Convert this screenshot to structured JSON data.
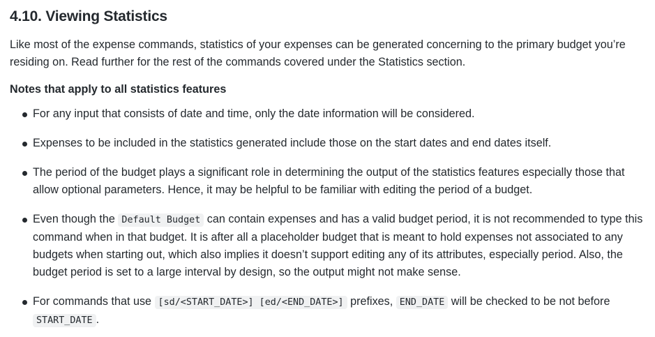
{
  "section": {
    "title": "4.10. Viewing Statistics",
    "intro": "Like most of the expense commands, statistics of your expenses can be generated concerning to the primary budget you’re residing on. Read further for the rest of the commands covered under the Statistics section.",
    "notes_heading": "Notes that apply to all statistics features",
    "notes": [
      {
        "text": "For any input that consists of date and time, only the date information will be considered."
      },
      {
        "text": "Expenses to be included in the statistics generated include those on the start dates and end dates itself."
      },
      {
        "text": "The period of the budget plays a significant role in determining the output of the statistics features especially those that allow optional parameters. Hence, it may be helpful to be familiar with editing the period of a budget."
      },
      {
        "pre": "Even though the ",
        "code": "Default Budget",
        "post": " can contain expenses and has a valid budget period, it is not recommended to type this command when in that budget. It is after all a placeholder budget that is meant to hold expenses not associated to any budgets when starting out, which also implies it doesn’t support editing any of its attributes, especially period. Also, the budget period is set to a large interval by design, so the output might not make sense."
      },
      {
        "pre": "For commands that use ",
        "code1": "[sd/<START_DATE>] [ed/<END_DATE>]",
        "mid1": " prefixes, ",
        "code2": "END_DATE",
        "mid2": " will be checked to be not before ",
        "code3": "START_DATE",
        "post": "."
      }
    ]
  }
}
